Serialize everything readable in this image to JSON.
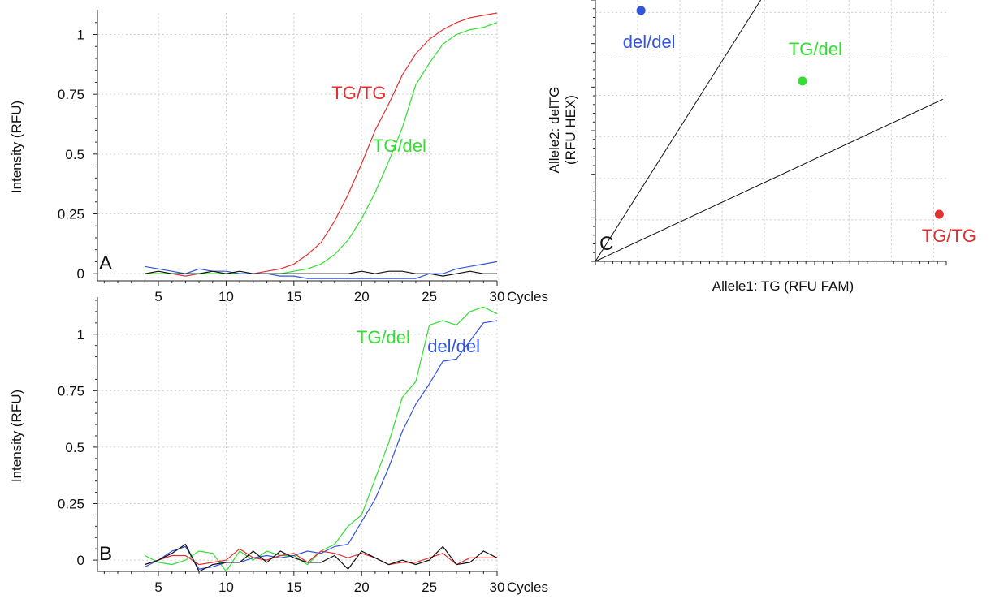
{
  "colors": {
    "red": "#e03030",
    "green": "#33dd33",
    "blue": "#3355dd",
    "black": "#111111",
    "grid": "#cfcfcf"
  },
  "chart_data": [
    {
      "type": "line",
      "panel_label": "A",
      "xlabel": "Cycles",
      "ylabel": "Intensity (RFU)",
      "x_ticks": [
        5,
        10,
        15,
        20,
        25,
        30
      ],
      "y_ticks": [
        0,
        0.25,
        0.5,
        0.75,
        1
      ],
      "y_tick_labels": [
        "0",
        "0.25",
        "0.5",
        "0.75",
        "1"
      ],
      "xlim": [
        0.5,
        30
      ],
      "ylim": [
        -0.03,
        1.09
      ],
      "grid": true,
      "annotations": [
        {
          "text": "TG/TG",
          "color": "red",
          "x": 19.8,
          "y": 0.73
        },
        {
          "text": "TG/del",
          "color": "green",
          "x": 22.8,
          "y": 0.51
        }
      ],
      "series": [
        {
          "color": "red",
          "x": [
            4,
            5,
            6,
            7,
            8,
            9,
            10,
            11,
            12,
            13,
            14,
            15,
            16,
            17,
            18,
            19,
            20,
            21,
            22,
            23,
            24,
            25,
            26,
            27,
            28,
            29,
            30
          ],
          "values": [
            0.0,
            0.0,
            0.0,
            -0.01,
            0.0,
            0.0,
            0.0,
            0.0,
            0.0,
            0.01,
            0.02,
            0.04,
            0.08,
            0.13,
            0.22,
            0.33,
            0.46,
            0.6,
            0.71,
            0.83,
            0.92,
            0.98,
            1.02,
            1.05,
            1.07,
            1.08,
            1.09
          ]
        },
        {
          "color": "green",
          "x": [
            4,
            5,
            6,
            7,
            8,
            9,
            10,
            11,
            12,
            13,
            14,
            15,
            16,
            17,
            18,
            19,
            20,
            21,
            22,
            23,
            24,
            25,
            26,
            27,
            28,
            29,
            30
          ],
          "values": [
            0.0,
            0.0,
            0.0,
            0.0,
            0.0,
            0.0,
            0.0,
            0.0,
            0.0,
            0.0,
            0.0,
            0.01,
            0.02,
            0.04,
            0.08,
            0.14,
            0.23,
            0.34,
            0.47,
            0.61,
            0.79,
            0.88,
            0.96,
            1.0,
            1.02,
            1.03,
            1.05
          ]
        },
        {
          "color": "blue",
          "x": [
            4,
            5,
            6,
            7,
            8,
            9,
            10,
            11,
            12,
            13,
            14,
            15,
            16,
            17,
            18,
            19,
            20,
            21,
            22,
            23,
            24,
            25,
            26,
            27,
            28,
            29,
            30
          ],
          "values": [
            0.03,
            0.02,
            0.01,
            0.0,
            0.02,
            0.01,
            0.01,
            0.0,
            0.0,
            0.0,
            -0.01,
            -0.01,
            -0.02,
            -0.02,
            -0.02,
            -0.02,
            -0.02,
            -0.02,
            -0.02,
            -0.02,
            -0.02,
            0.0,
            0.0,
            0.02,
            0.03,
            0.04,
            0.05
          ]
        },
        {
          "color": "black",
          "x": [
            4,
            5,
            6,
            7,
            8,
            9,
            10,
            11,
            12,
            13,
            14,
            15,
            16,
            17,
            18,
            19,
            20,
            21,
            22,
            23,
            24,
            25,
            26,
            27,
            28,
            29,
            30
          ],
          "values": [
            0.0,
            0.01,
            0.0,
            0.0,
            0.0,
            0.01,
            0.0,
            0.01,
            0.0,
            0.0,
            0.0,
            0.0,
            0.0,
            0.0,
            0.0,
            0.0,
            0.01,
            0.0,
            0.01,
            0.01,
            0.0,
            0.0,
            -0.01,
            0.0,
            0.01,
            0.0,
            0.0
          ]
        }
      ]
    },
    {
      "type": "line",
      "panel_label": "B",
      "xlabel": "Cycles",
      "ylabel": "Intensity (RFU)",
      "x_ticks": [
        5,
        10,
        15,
        20,
        25,
        30
      ],
      "y_ticks": [
        0,
        0.25,
        0.5,
        0.75,
        1
      ],
      "y_tick_labels": [
        "0",
        "0.25",
        "0.5",
        "0.75",
        "1"
      ],
      "xlim": [
        0.5,
        30
      ],
      "ylim": [
        -0.05,
        1.15
      ],
      "grid": true,
      "annotations": [
        {
          "text": "TG/del",
          "color": "green",
          "x": 21.6,
          "y": 0.96
        },
        {
          "text": "del/del",
          "color": "blue",
          "x": 26.8,
          "y": 0.92
        }
      ],
      "series": [
        {
          "color": "green",
          "x": [
            4,
            5,
            6,
            7,
            8,
            9,
            10,
            11,
            12,
            13,
            14,
            15,
            16,
            17,
            18,
            19,
            20,
            21,
            22,
            23,
            24,
            25,
            26,
            27,
            28,
            29,
            30
          ],
          "values": [
            0.02,
            -0.01,
            -0.02,
            0.0,
            0.04,
            0.03,
            -0.05,
            0.04,
            0.0,
            0.04,
            0.02,
            0.02,
            -0.02,
            0.04,
            0.07,
            0.15,
            0.2,
            0.36,
            0.52,
            0.72,
            0.79,
            1.04,
            1.06,
            1.04,
            1.1,
            1.12,
            1.09
          ]
        },
        {
          "color": "blue",
          "x": [
            4,
            5,
            6,
            7,
            8,
            9,
            10,
            11,
            12,
            13,
            14,
            15,
            16,
            17,
            18,
            19,
            20,
            21,
            22,
            23,
            24,
            25,
            26,
            27,
            28,
            29,
            30
          ],
          "values": [
            -0.03,
            0.0,
            0.04,
            0.06,
            -0.04,
            -0.03,
            -0.01,
            -0.01,
            0.01,
            0.02,
            0.01,
            0.02,
            0.04,
            0.03,
            0.06,
            0.07,
            0.17,
            0.27,
            0.41,
            0.57,
            0.69,
            0.78,
            0.88,
            0.89,
            0.97,
            1.05,
            1.06
          ]
        },
        {
          "color": "red",
          "x": [
            4,
            5,
            6,
            7,
            8,
            9,
            10,
            11,
            12,
            13,
            14,
            15,
            16,
            17,
            18,
            19,
            20,
            21,
            22,
            23,
            24,
            25,
            26,
            27,
            28,
            29,
            30
          ],
          "values": [
            -0.02,
            0.0,
            0.02,
            0.02,
            -0.02,
            -0.01,
            0.0,
            0.05,
            0.01,
            0.0,
            0.02,
            0.03,
            -0.01,
            0.04,
            0.03,
            0.01,
            0.03,
            0.01,
            -0.02,
            -0.01,
            -0.01,
            0.01,
            0.03,
            -0.02,
            0.01,
            0.01,
            0.01
          ]
        },
        {
          "color": "black",
          "x": [
            4,
            5,
            6,
            7,
            8,
            9,
            10,
            11,
            12,
            13,
            14,
            15,
            16,
            17,
            18,
            19,
            20,
            21,
            22,
            23,
            24,
            25,
            26,
            27,
            28,
            29,
            30
          ],
          "values": [
            -0.02,
            0.0,
            0.03,
            0.07,
            -0.05,
            -0.02,
            -0.01,
            -0.01,
            0.04,
            -0.01,
            0.04,
            0.01,
            -0.01,
            -0.01,
            0.02,
            -0.04,
            0.04,
            0.01,
            -0.02,
            0.0,
            -0.02,
            0.0,
            0.06,
            -0.02,
            -0.01,
            0.04,
            0.01
          ]
        }
      ]
    },
    {
      "type": "scatter",
      "panel_label": "C",
      "xlabel": "Allele1: TG (RFU FAM)",
      "ylabel": "Allele2: delTG",
      "ylabel2": "(RFU HEX)",
      "xlim": [
        0,
        1
      ],
      "ylim": [
        0,
        1
      ],
      "grid": true,
      "points": [
        {
          "label": "del/del",
          "color": "blue",
          "x": 0.13,
          "y": 0.96
        },
        {
          "label": "TG/del",
          "color": "green",
          "x": 0.59,
          "y": 0.69
        },
        {
          "label": "TG/TG",
          "color": "red",
          "x": 0.98,
          "y": 0.18
        }
      ],
      "boundary_lines": [
        {
          "x": [
            0,
            0.49
          ],
          "y": [
            0,
            1.04
          ]
        },
        {
          "x": [
            0,
            0.99
          ],
          "y": [
            0,
            0.62
          ]
        }
      ]
    }
  ]
}
